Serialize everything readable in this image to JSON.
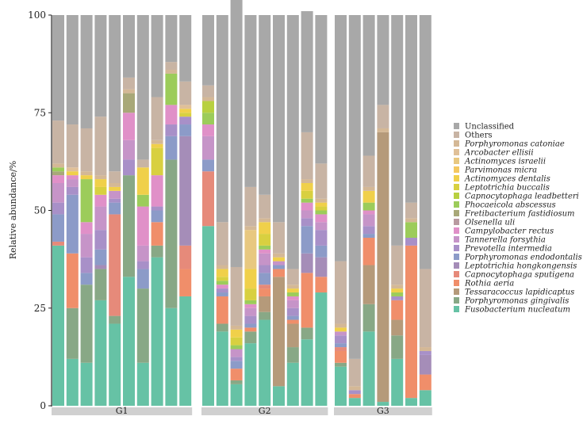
{
  "chart_data": {
    "type": "stacked-bar",
    "title": "",
    "xlabel": "",
    "ylabel": "Relative abundance/%",
    "ylim": [
      0,
      100
    ],
    "yticks": [
      "0",
      "25",
      "50",
      "75",
      "100"
    ],
    "legend_position": "right",
    "groups": [
      {
        "name": "G1",
        "samples": 10
      },
      {
        "name": "G2",
        "samples": 9
      },
      {
        "name": "G3",
        "samples": 7
      }
    ],
    "series": [
      {
        "name": "Fusobacterium nucleatum",
        "color": "#66c2a5",
        "values": [
          41,
          12,
          11,
          27,
          21,
          33,
          11,
          38,
          25,
          28,
          46,
          19,
          5.5,
          16,
          22,
          5,
          11,
          17,
          29,
          10,
          2,
          19,
          1,
          12,
          2,
          4
        ]
      },
      {
        "name": "Porphyromonas gingivalis",
        "color": "#88a886",
        "values": [
          0,
          13,
          20,
          8,
          2,
          26,
          19,
          3,
          38,
          0,
          0,
          2,
          1,
          3,
          2,
          0,
          4,
          3,
          0,
          1,
          0,
          7,
          0,
          6,
          0,
          0
        ]
      },
      {
        "name": "Tessaracoccus lapidicaptus",
        "color": "#b59a7a",
        "values": [
          0,
          0,
          0,
          0,
          0,
          0,
          0,
          0,
          0,
          0,
          0,
          0,
          0,
          0,
          4,
          28,
          6,
          0,
          0,
          0,
          0,
          10,
          69,
          4,
          0,
          0
        ]
      },
      {
        "name": "Rothia aeria",
        "color": "#f08e6a",
        "values": [
          0,
          14,
          0,
          0,
          0,
          0,
          0,
          6,
          0,
          7,
          0,
          7,
          3,
          1,
          2,
          2,
          1,
          14,
          4,
          3,
          1,
          7,
          0,
          5,
          39,
          4
        ]
      },
      {
        "name": "Capnocytophaga sputigena",
        "color": "#e68a7a",
        "values": [
          1,
          0,
          0,
          0,
          26,
          0,
          0,
          0,
          0,
          6,
          14,
          0,
          0,
          0,
          1,
          0,
          0,
          0,
          0,
          1,
          0,
          0,
          0,
          0,
          0,
          0
        ]
      },
      {
        "name": "Leptotrichia hongkongensis",
        "color": "#a58db8",
        "values": [
          0,
          0,
          0,
          1,
          0,
          0,
          0,
          0,
          0,
          28,
          0,
          0,
          0,
          0,
          0,
          0,
          0,
          5,
          5,
          0,
          0,
          0,
          0,
          0,
          0,
          5
        ]
      },
      {
        "name": "Porphyromonas endodontalis",
        "color": "#8c9bc8",
        "values": [
          7,
          15,
          3,
          4,
          3,
          0,
          5,
          3,
          6,
          3,
          3,
          1,
          2,
          1,
          3,
          1,
          1,
          7,
          3,
          1,
          0,
          1,
          0,
          0,
          0,
          0
        ]
      },
      {
        "name": "Prevotella intermedia",
        "color": "#a890c8",
        "values": [
          3,
          2,
          4,
          5,
          1,
          4,
          2,
          1,
          3,
          2,
          0,
          1,
          1,
          2,
          2,
          0,
          2,
          2,
          4,
          2,
          1,
          2,
          0,
          1,
          2,
          1
        ]
      },
      {
        "name": "Tannerella forsythia",
        "color": "#c694c8",
        "values": [
          5,
          2,
          6,
          6,
          2,
          5,
          4,
          0,
          0,
          0,
          6,
          0,
          2,
          2,
          3,
          1,
          2,
          2,
          2,
          1,
          0,
          3,
          0,
          0,
          0,
          0
        ]
      },
      {
        "name": "Campylobacter rectus",
        "color": "#e090c8",
        "values": [
          2,
          1,
          3,
          3,
          0,
          7,
          10,
          8,
          5,
          0,
          3,
          1,
          0,
          1,
          1,
          0,
          1,
          2,
          2,
          0,
          0,
          1,
          0,
          0,
          0,
          0
        ]
      },
      {
        "name": "Olsenella uli",
        "color": "#b89aa0",
        "values": [
          0,
          0,
          0,
          0,
          0,
          0,
          0,
          0,
          0,
          0,
          0,
          0,
          0,
          0,
          0,
          0,
          0,
          0,
          0,
          0,
          0,
          0,
          0,
          0,
          0,
          0
        ]
      },
      {
        "name": "Fretibacterium fastidiosum",
        "color": "#a8a878",
        "values": [
          1,
          0,
          0,
          0,
          0,
          5,
          0,
          0,
          0,
          0,
          0,
          0,
          0,
          0,
          0,
          0,
          0,
          0,
          0,
          0,
          0,
          0,
          0,
          0,
          0,
          0
        ]
      },
      {
        "name": "Phocaeicola abscessus",
        "color": "#9ccc5a",
        "values": [
          1,
          0,
          11,
          0,
          0,
          0,
          3,
          0,
          8,
          0,
          3,
          1,
          1,
          1,
          1,
          0,
          1,
          1,
          1,
          0,
          0,
          2,
          0,
          1,
          4,
          0
        ]
      },
      {
        "name": "Capnocytophaga leadbetteri",
        "color": "#b8d040",
        "values": [
          0,
          0,
          0,
          0,
          0,
          0,
          0,
          0,
          0,
          0,
          3,
          0,
          0,
          0,
          0,
          0,
          0,
          0,
          0,
          0,
          0,
          0,
          0,
          0,
          0,
          0
        ]
      },
      {
        "name": "Leptotrichia buccalis",
        "color": "#d8d040",
        "values": [
          0,
          0,
          0,
          2,
          0,
          0,
          0,
          7,
          0,
          1,
          0,
          1,
          2,
          3,
          3,
          0,
          0,
          2,
          1,
          0,
          0,
          0,
          0,
          0,
          0,
          0
        ]
      },
      {
        "name": "Actinomyces dentalis",
        "color": "#f0d04a",
        "values": [
          0,
          1,
          1,
          2,
          1,
          0,
          7,
          1,
          0,
          1,
          0,
          2,
          2,
          5,
          3,
          1,
          1,
          2,
          1,
          1,
          0,
          3,
          0,
          1,
          0,
          0
        ]
      },
      {
        "name": "Parvimonas micra",
        "color": "#f4c860",
        "values": [
          0,
          0,
          0,
          0,
          0,
          0,
          0,
          0,
          0,
          0,
          0,
          0,
          0,
          0,
          0,
          0,
          0,
          0,
          0,
          0,
          0,
          0,
          0,
          0,
          0,
          0
        ]
      },
      {
        "name": "Actinomyces israelii",
        "color": "#e8c880",
        "values": [
          0,
          0,
          0,
          0,
          0,
          0,
          0,
          0,
          0,
          0,
          0,
          0,
          0,
          10,
          0,
          0,
          0,
          0,
          0,
          0,
          0,
          0,
          0,
          0,
          0,
          0
        ]
      },
      {
        "name": "Arcobacter ellisii",
        "color": "#e0c098",
        "values": [
          0,
          1,
          0,
          0,
          0,
          0,
          0,
          0,
          0,
          1,
          0,
          0,
          0,
          0,
          0,
          0,
          0,
          0,
          0,
          0,
          0,
          0,
          0,
          0,
          0,
          0
        ]
      },
      {
        "name": "Porphyromonas catoniae",
        "color": "#d4b896",
        "values": [
          1,
          0,
          1,
          1,
          1,
          1,
          0,
          1,
          1,
          0,
          1,
          1,
          1,
          1,
          1,
          1,
          1,
          1,
          1,
          1,
          1,
          1,
          1,
          1,
          1,
          1
        ]
      },
      {
        "name": "Others",
        "color": "#c8b4a4",
        "values": [
          11,
          11,
          11,
          15,
          3,
          3,
          2,
          11,
          2,
          6,
          3,
          11,
          15,
          10,
          6,
          8,
          4,
          12,
          9,
          16,
          7,
          8,
          6,
          10,
          4,
          20
        ]
      },
      {
        "name": "Unclassified",
        "color": "#a8a8a8",
        "values": [
          27,
          28,
          29,
          26,
          40,
          16,
          37,
          21,
          12,
          17,
          18,
          53,
          69.5,
          44,
          46,
          53,
          65,
          31,
          38,
          63,
          88,
          36,
          23,
          59,
          48,
          65
        ]
      }
    ]
  }
}
